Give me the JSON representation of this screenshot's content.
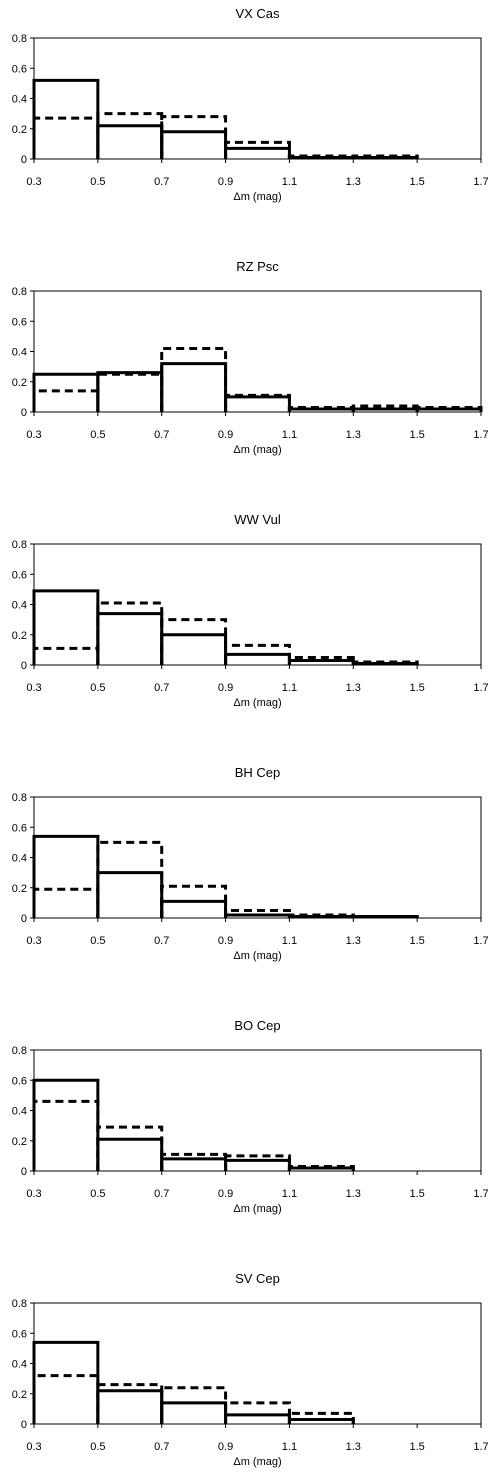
{
  "chart_data": [
    {
      "type": "bar",
      "title": "VX Cas",
      "xlabel": "Δm  (mag)",
      "ylabel": "",
      "xlim": [
        0.3,
        1.7
      ],
      "ylim": [
        0,
        0.8
      ],
      "x_ticks": [
        "0.3",
        "0.5",
        "0.7",
        "0.9",
        "1.1",
        "1.3",
        "1.5",
        "1.7"
      ],
      "y_ticks": [
        "0",
        "0.2",
        "0.4",
        "0.6",
        "0.8"
      ],
      "bin_edges": [
        0.3,
        0.5,
        0.7,
        0.9,
        1.1,
        1.3,
        1.5
      ],
      "series": [
        {
          "style": "solid",
          "values": [
            0.52,
            0.22,
            0.18,
            0.07,
            0.01,
            0.01
          ]
        },
        {
          "style": "dashed",
          "values": [
            0.27,
            0.3,
            0.28,
            0.11,
            0.02,
            0.02
          ]
        }
      ],
      "grid": false
    },
    {
      "type": "bar",
      "title": "RZ Psc",
      "xlabel": "Δm  (mag)",
      "ylabel": "",
      "xlim": [
        0.3,
        1.7
      ],
      "ylim": [
        0,
        0.8
      ],
      "x_ticks": [
        "0.3",
        "0.5",
        "0.7",
        "0.9",
        "1.1",
        "1.3",
        "1.5",
        "1.7"
      ],
      "y_ticks": [
        "0",
        "0.2",
        "0.4",
        "0.6",
        "0.8"
      ],
      "bin_edges": [
        0.3,
        0.5,
        0.7,
        0.9,
        1.1,
        1.3,
        1.5,
        1.7
      ],
      "series": [
        {
          "style": "solid",
          "values": [
            0.25,
            0.26,
            0.32,
            0.1,
            0.02,
            0.02,
            0.02
          ]
        },
        {
          "style": "dashed",
          "values": [
            0.14,
            0.25,
            0.42,
            0.11,
            0.03,
            0.04,
            0.03
          ]
        }
      ],
      "grid": false
    },
    {
      "type": "bar",
      "title": "WW Vul",
      "xlabel": "Δm  (mag)",
      "ylabel": "",
      "xlim": [
        0.3,
        1.7
      ],
      "ylim": [
        0,
        0.8
      ],
      "x_ticks": [
        "0.3",
        "0.5",
        "0.7",
        "0.9",
        "1.1",
        "1.3",
        "1.5",
        "1.7"
      ],
      "y_ticks": [
        "0",
        "0.2",
        "0.4",
        "0.6",
        "0.8"
      ],
      "bin_edges": [
        0.3,
        0.5,
        0.7,
        0.9,
        1.1,
        1.3,
        1.5
      ],
      "series": [
        {
          "style": "solid",
          "values": [
            0.49,
            0.34,
            0.2,
            0.07,
            0.03,
            0.01
          ]
        },
        {
          "style": "dashed",
          "values": [
            0.11,
            0.41,
            0.3,
            0.13,
            0.05,
            0.02
          ]
        }
      ],
      "grid": false
    },
    {
      "type": "bar",
      "title": "BH Cep",
      "xlabel": "Δm  (mag)",
      "ylabel": "",
      "xlim": [
        0.3,
        1.7
      ],
      "ylim": [
        0,
        0.8
      ],
      "x_ticks": [
        "0.3",
        "0.5",
        "0.7",
        "0.9",
        "1.1",
        "1.3",
        "1.5",
        "1.7"
      ],
      "y_ticks": [
        "0",
        "0.2",
        "0.4",
        "0.6",
        "0.8"
      ],
      "bin_edges": [
        0.3,
        0.5,
        0.7,
        0.9,
        1.1,
        1.3,
        1.5
      ],
      "series": [
        {
          "style": "solid",
          "values": [
            0.54,
            0.3,
            0.11,
            0.02,
            0.01,
            0.01
          ]
        },
        {
          "style": "dashed",
          "values": [
            0.19,
            0.5,
            0.21,
            0.05,
            0.02,
            0.01
          ]
        }
      ],
      "grid": false
    },
    {
      "type": "bar",
      "title": "BO Cep",
      "xlabel": "Δm  (mag)",
      "ylabel": "",
      "xlim": [
        0.3,
        1.7
      ],
      "ylim": [
        0,
        0.8
      ],
      "x_ticks": [
        "0.3",
        "0.5",
        "0.7",
        "0.9",
        "1.1",
        "1.3",
        "1.5",
        "1.7"
      ],
      "y_ticks": [
        "0",
        "0.2",
        "0.4",
        "0.6",
        "0.8"
      ],
      "bin_edges": [
        0.3,
        0.5,
        0.7,
        0.9,
        1.1,
        1.3
      ],
      "series": [
        {
          "style": "solid",
          "values": [
            0.6,
            0.21,
            0.08,
            0.07,
            0.02
          ]
        },
        {
          "style": "dashed",
          "values": [
            0.46,
            0.29,
            0.11,
            0.1,
            0.03
          ]
        }
      ],
      "grid": false
    },
    {
      "type": "bar",
      "title": "SV Cep",
      "xlabel": "Δm  (mag)",
      "ylabel": "",
      "xlim": [
        0.3,
        1.7
      ],
      "ylim": [
        0,
        0.8
      ],
      "x_ticks": [
        "0.3",
        "0.5",
        "0.7",
        "0.9",
        "1.1",
        "1.3",
        "1.5",
        "1.7"
      ],
      "y_ticks": [
        "0",
        "0.2",
        "0.4",
        "0.6",
        "0.8"
      ],
      "bin_edges": [
        0.3,
        0.5,
        0.7,
        0.9,
        1.1,
        1.3
      ],
      "series": [
        {
          "style": "solid",
          "values": [
            0.54,
            0.22,
            0.14,
            0.06,
            0.03
          ]
        },
        {
          "style": "dashed",
          "values": [
            0.32,
            0.26,
            0.24,
            0.14,
            0.07
          ]
        }
      ],
      "grid": false
    }
  ]
}
